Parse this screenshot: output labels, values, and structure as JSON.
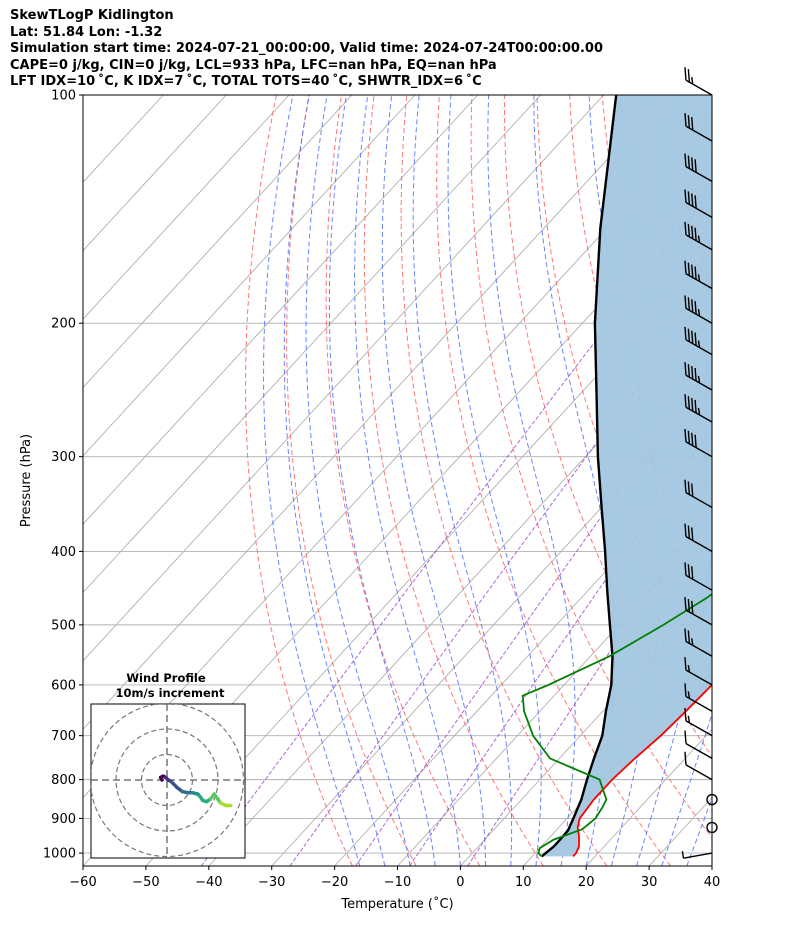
{
  "header": {
    "line1": "SkewTLogP Kidlington",
    "line2": "Lat: 51.84   Lon: -1.32",
    "line3": "Simulation start time: 2024-07-21_00:00:00, Valid time: 2024-07-24T00:00:00.00",
    "line4": "CAPE=0 j/kg, CIN=0 j/kg, LCL=933 hPa, LFC=nan hPa, EQ=nan hPa",
    "line5": "LFT IDX=10 ˚C, K IDX=7 ˚C, TOTAL TOTS=40 ˚C, SHWTR_IDX=6 ˚C"
  },
  "chart_data": {
    "type": "skew-t log-p",
    "xlabel": "Temperature (˚C)",
    "ylabel": "Pressure (hPa)",
    "xlim": [
      -60,
      40
    ],
    "ylim": [
      1040,
      100
    ],
    "x_ticks": [
      "−60",
      "−50",
      "−40",
      "−30",
      "−20",
      "−10",
      "0",
      "10",
      "20",
      "30",
      "40"
    ],
    "y_ticks": [
      "100",
      "200",
      "300",
      "400",
      "500",
      "600",
      "700",
      "800",
      "900",
      "1000"
    ],
    "grid": true,
    "colors": {
      "temperature": "#ff0000",
      "dewpoint": "#008000",
      "parcel": "#000000",
      "shading": "#a3c6e0",
      "dry_adiabat": "#ff5555",
      "moist_adiabat": "#4466ff",
      "mixing_ratio": "#9944cc"
    },
    "temperature": [
      [
        1010,
        16.5
      ],
      [
        1000,
        16.5
      ],
      [
        980,
        16
      ],
      [
        950,
        14.5
      ],
      [
        925,
        13
      ],
      [
        900,
        12
      ],
      [
        850,
        11.5
      ],
      [
        800,
        11.5
      ],
      [
        750,
        12
      ],
      [
        700,
        12.8
      ],
      [
        650,
        13.2
      ],
      [
        600,
        13.5
      ],
      [
        550,
        12
      ],
      [
        500,
        8.5
      ],
      [
        470,
        7
      ],
      [
        440,
        8
      ],
      [
        400,
        7
      ],
      [
        370,
        5
      ],
      [
        350,
        4
      ],
      [
        300,
        -1
      ],
      [
        250,
        -4.5
      ],
      [
        230,
        -6
      ],
      [
        200,
        -7
      ],
      [
        180,
        -7
      ],
      [
        160,
        -6
      ],
      [
        150,
        -3.5
      ],
      [
        140,
        -1
      ],
      [
        130,
        -0.3
      ],
      [
        120,
        1
      ],
      [
        110,
        3
      ],
      [
        100,
        5
      ]
    ],
    "dewpoint": [
      [
        1010,
        11.5
      ],
      [
        1000,
        10.5
      ],
      [
        985,
        10
      ],
      [
        960,
        11
      ],
      [
        930,
        14
      ],
      [
        900,
        14.5
      ],
      [
        870,
        14
      ],
      [
        850,
        13.5
      ],
      [
        800,
        9.5
      ],
      [
        750,
        -1.5
      ],
      [
        700,
        -7.5
      ],
      [
        650,
        -12.5
      ],
      [
        620,
        -15
      ],
      [
        600,
        -12.5
      ],
      [
        550,
        -7
      ],
      [
        500,
        -3
      ],
      [
        460,
        0
      ],
      [
        420,
        2
      ],
      [
        380,
        0
      ],
      [
        350,
        -2
      ],
      [
        330,
        -6
      ],
      [
        320,
        -10
      ],
      [
        300,
        -16
      ],
      [
        290,
        -19
      ],
      [
        260,
        -19
      ],
      [
        240,
        -20
      ],
      [
        200,
        -24
      ],
      [
        180,
        -26
      ],
      [
        170,
        -29
      ],
      [
        150,
        -33
      ],
      [
        140,
        -37
      ],
      [
        100,
        -40
      ]
    ],
    "parcel": [
      [
        1010,
        11.5
      ],
      [
        980,
        12
      ],
      [
        960,
        12
      ],
      [
        933,
        11.9
      ],
      [
        900,
        11
      ],
      [
        850,
        9.5
      ],
      [
        800,
        7.5
      ],
      [
        750,
        5.5
      ],
      [
        700,
        3.5
      ],
      [
        650,
        0.5
      ],
      [
        600,
        -2.5
      ],
      [
        550,
        -6.5
      ],
      [
        500,
        -11.5
      ],
      [
        450,
        -17
      ],
      [
        400,
        -23
      ],
      [
        350,
        -30
      ],
      [
        300,
        -38
      ],
      [
        250,
        -47
      ],
      [
        200,
        -58
      ],
      [
        150,
        -71
      ],
      [
        100,
        -88
      ]
    ],
    "wind_barbs": [
      [
        1000,
        4
      ],
      [
        925,
        0
      ],
      [
        850,
        0
      ],
      [
        800,
        10
      ],
      [
        750,
        12
      ],
      [
        700,
        15
      ],
      [
        650,
        15
      ],
      [
        600,
        15
      ],
      [
        550,
        25
      ],
      [
        500,
        30
      ],
      [
        450,
        30
      ],
      [
        400,
        30
      ],
      [
        350,
        30
      ],
      [
        300,
        40
      ],
      [
        270,
        45
      ],
      [
        245,
        45
      ],
      [
        220,
        45
      ],
      [
        200,
        45
      ],
      [
        180,
        45
      ],
      [
        160,
        45
      ],
      [
        145,
        40
      ],
      [
        130,
        40
      ],
      [
        115,
        30
      ],
      [
        100,
        25
      ]
    ],
    "hodograph": {
      "title": "Wind Profile",
      "subtitle": "10m/s increment",
      "u": [
        -2,
        -2.5,
        -1.5,
        -0.5,
        0.5,
        1.5,
        2.5,
        4,
        6,
        8,
        10,
        12,
        13,
        14,
        15.5,
        17,
        18.5,
        21,
        23,
        25
      ],
      "v": [
        0,
        1,
        1.5,
        1,
        0,
        -0.5,
        -1.5,
        -3,
        -4.5,
        -5,
        -5,
        -5.5,
        -6.5,
        -8,
        -8.5,
        -7.5,
        -5.5,
        -9,
        -10,
        -10
      ],
      "rings": [
        10,
        20,
        30
      ]
    }
  }
}
